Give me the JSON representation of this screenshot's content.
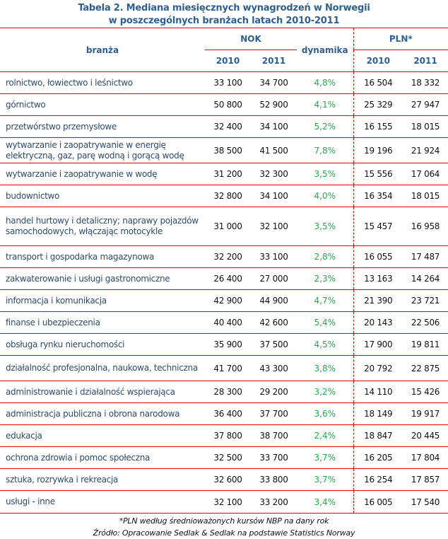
{
  "title": {
    "line1": "Tabela 2. Mediana miesięcznych wynagrodzeń w Norwegii",
    "line2": "w poszczególnych branżach latach 2010-2011"
  },
  "header": {
    "branza": "branża",
    "nok": "NOK",
    "dynamika": "dynamika",
    "pln": "PLN*",
    "y2010": "2010",
    "y2011": "2011"
  },
  "colors": {
    "header": "#2f5f8f",
    "rule": "#e00000",
    "dynamika": "#1fae4a"
  },
  "rows": [
    {
      "name": "rolnictwo, łowiectwo i leśnictwo",
      "nok2010": "33 100",
      "nok2011": "34 700",
      "dyn": "4,8%",
      "pln2010": "16 504",
      "pln2011": "18 332"
    },
    {
      "name": "górnictwo",
      "nok2010": "50 800",
      "nok2011": "52 900",
      "dyn": "4,1%",
      "pln2010": "25 329",
      "pln2011": "27 947"
    },
    {
      "name": "przetwórstwo przemysłowe",
      "nok2010": "32 400",
      "nok2011": "34 100",
      "dyn": "5,2%",
      "pln2010": "16 155",
      "pln2011": "18 015"
    },
    {
      "name": "wytwarzanie i zaopatrywanie w energię elektryczną, gaz, parę wodną i gorącą wodę",
      "nok2010": "38 500",
      "nok2011": "41 500",
      "dyn": "7,8%",
      "pln2010": "19 196",
      "pln2011": "21 924"
    },
    {
      "name": "wytwarzanie i zaopatrywanie w wodę",
      "nok2010": "31 200",
      "nok2011": "32 300",
      "dyn": "3,5%",
      "pln2010": "15 556",
      "pln2011": "17 064"
    },
    {
      "name": "budownictwo",
      "nok2010": "32 800",
      "nok2011": "34 100",
      "dyn": "4,0%",
      "pln2010": "16 354",
      "pln2011": "18 015"
    },
    {
      "name": "handel hurtowy i detaliczny; naprawy pojazdów samochodowych, włączając motocykle",
      "nok2010": "31 000",
      "nok2011": "32 100",
      "dyn": "3,5%",
      "pln2010": "15 457",
      "pln2011": "16 958"
    },
    {
      "name": "transport i gospodarka magazynowa",
      "nok2010": "32 200",
      "nok2011": "33 100",
      "dyn": "2,8%",
      "pln2010": "16 055",
      "pln2011": "17 487"
    },
    {
      "name": "zakwaterowanie i usługi gastronomiczne",
      "nok2010": "26 400",
      "nok2011": "27 000",
      "dyn": "2,3%",
      "pln2010": "13 163",
      "pln2011": "14 264"
    },
    {
      "name": "informacja i komunikacja",
      "nok2010": "42 900",
      "nok2011": "44 900",
      "dyn": "4,7%",
      "pln2010": "21 390",
      "pln2011": "23 721"
    },
    {
      "name": "finanse i ubezpieczenia",
      "nok2010": "40 400",
      "nok2011": "42 600",
      "dyn": "5,4%",
      "pln2010": "20 143",
      "pln2011": "22 506"
    },
    {
      "name": "obsługa rynku nieruchomości",
      "nok2010": "35 900",
      "nok2011": "37 500",
      "dyn": "4,5%",
      "pln2010": "17 900",
      "pln2011": "19 811"
    },
    {
      "name": "działalność profesjonalna, naukowa, techniczna",
      "nok2010": "41 700",
      "nok2011": "43 300",
      "dyn": "3,8%",
      "pln2010": "20 792",
      "pln2011": "22 875"
    },
    {
      "name": "administrowanie i działalność wspierająca",
      "nok2010": "28 300",
      "nok2011": "29 200",
      "dyn": "3,2%",
      "pln2010": "14 110",
      "pln2011": "15 426"
    },
    {
      "name": "administracja publiczna i obrona narodowa",
      "nok2010": "36 400",
      "nok2011": "37 700",
      "dyn": "3,6%",
      "pln2010": "18 149",
      "pln2011": "19 917"
    },
    {
      "name": "edukacja",
      "nok2010": "37 800",
      "nok2011": "38 700",
      "dyn": "2,4%",
      "pln2010": "18 847",
      "pln2011": "20 445"
    },
    {
      "name": "ochrona zdrowia i pomoc społeczna",
      "nok2010": "32 500",
      "nok2011": "33 700",
      "dyn": "3,7%",
      "pln2010": "16 205",
      "pln2011": "17 804"
    },
    {
      "name": "sztuka, rozrywka i rekreacja",
      "nok2010": "32 600",
      "nok2011": "33 800",
      "dyn": "3,7%",
      "pln2010": "16 254",
      "pln2011": "17 857"
    },
    {
      "name": "usługi - inne",
      "nok2010": "32 100",
      "nok2011": "33 200",
      "dyn": "3,4%",
      "pln2010": "16 005",
      "pln2011": "17 540"
    }
  ],
  "footer": {
    "note": "*PLN według średnioważonych kursów NBP na dany rok",
    "source": "Źródło: Opracowanie Sedlak & Sedlak na podstawie Statistics Norway"
  }
}
